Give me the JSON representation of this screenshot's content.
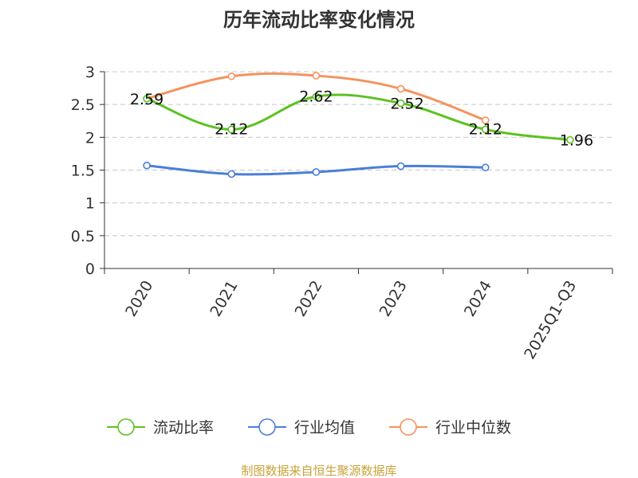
{
  "chart_data": {
    "type": "line",
    "title": "历年流动比率变化情况",
    "categories": [
      "2020",
      "2021",
      "2022",
      "2023",
      "2024",
      "2025Q1-Q3"
    ],
    "ylim": [
      0,
      3
    ],
    "yticks": [
      "0",
      "0.5",
      "1",
      "1.5",
      "2",
      "2.5",
      "3"
    ],
    "grid": true,
    "legend_position": "bottom",
    "series": [
      {
        "name": "流动比率",
        "color": "#5cc21f",
        "values": [
          2.59,
          2.12,
          2.62,
          2.52,
          2.12,
          1.96
        ],
        "labels": [
          "2.59",
          "2.12",
          "2.62",
          "2.52",
          "2.12",
          "1.96"
        ]
      },
      {
        "name": "行业均值",
        "color": "#4a7fd8",
        "values": [
          1.57,
          1.44,
          1.47,
          1.56,
          1.54,
          null
        ]
      },
      {
        "name": "行业中位数",
        "color": "#f5925e",
        "values": [
          2.59,
          2.93,
          2.94,
          2.74,
          2.26,
          null
        ]
      }
    ]
  },
  "source": {
    "text": "制图数据来自恒生聚源数据库",
    "color": "#c9a238"
  }
}
